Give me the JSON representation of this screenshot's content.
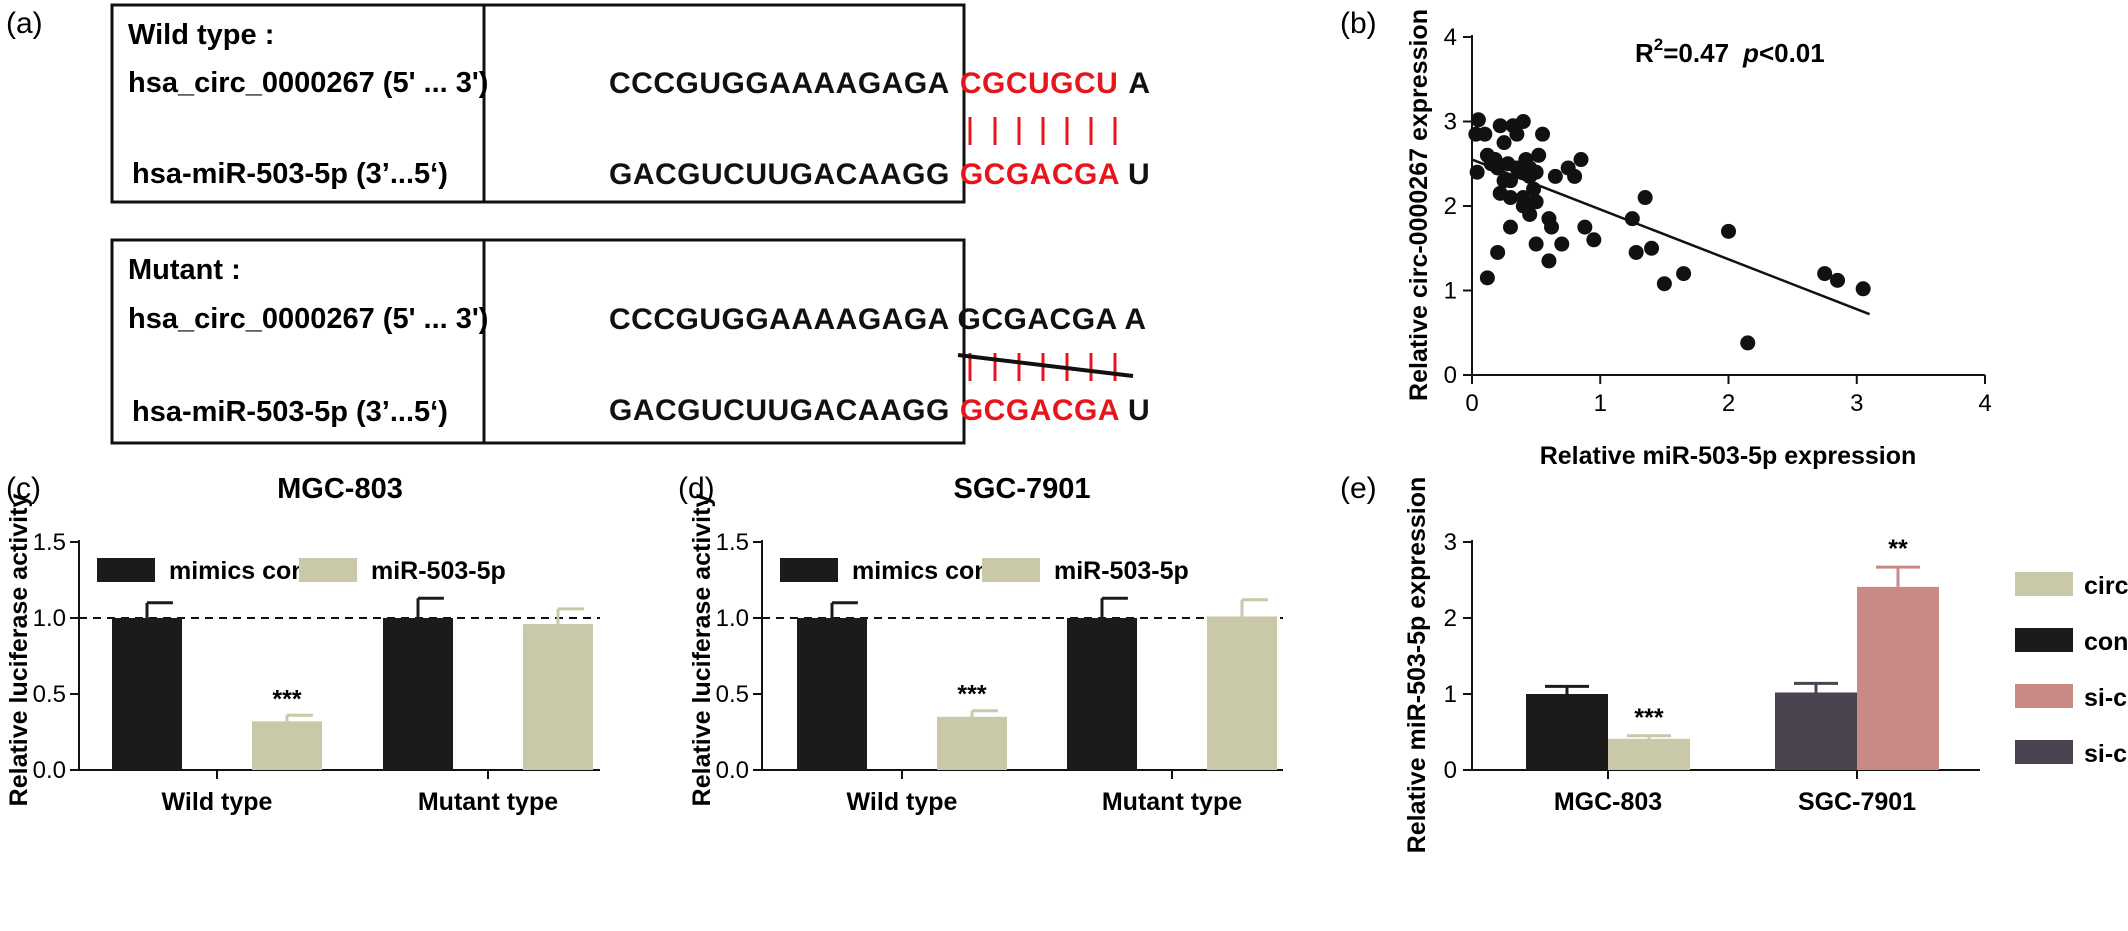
{
  "panel_a": {
    "label": "(a)",
    "wild": {
      "title": "Wild type :",
      "circ_name": "hsa_circ_0000267 (5' ... 3')",
      "mir_name": "hsa-miR-503-5p (3’...5‘)",
      "circ_seq_plain": "CCCGUGGAAAAGAGA",
      "circ_seq_red": "CGCUGCU",
      "circ_seq_end": "A",
      "mir_seq_plain": "GACGUCUUGACAAGG",
      "mir_seq_red": "GCGACGA",
      "mir_seq_end": "U"
    },
    "mutant": {
      "title": "Mutant :",
      "circ_name": "hsa_circ_0000267 (5' ... 3')",
      "mir_name": "hsa-miR-503-5p (3’...5‘)",
      "circ_seq_plain": "CCCGUGGAAAAGAGA GCGACGA A",
      "mir_seq_plain": "GACGUCUUGACAAGG",
      "mir_seq_red": "GCGACGA",
      "mir_seq_end": "U"
    },
    "colors": {
      "red": "#e8141b",
      "black": "#111111"
    }
  },
  "chart_data": [
    {
      "panel": "(b)",
      "type": "scatter",
      "annotation": "R²=0.47  p<0.01",
      "annotation_parts": {
        "r": "R",
        "sup": "2",
        "val": "=0.47",
        "p": "p",
        "pval": "<0.01"
      },
      "xlabel": "Relative miR-503-5p expression",
      "ylabel": "Relative circ-0000267 expression",
      "xlim": [
        0,
        4
      ],
      "ylim": [
        0,
        4
      ],
      "xticks": [
        "0",
        "1",
        "2",
        "3",
        "4"
      ],
      "yticks": [
        "0",
        "1",
        "2",
        "3",
        "4"
      ],
      "points": [
        [
          0.03,
          2.85
        ],
        [
          0.05,
          3.02
        ],
        [
          0.04,
          2.4
        ],
        [
          0.1,
          2.85
        ],
        [
          0.12,
          2.6
        ],
        [
          0.15,
          2.5
        ],
        [
          0.18,
          2.55
        ],
        [
          0.2,
          2.45
        ],
        [
          0.22,
          2.95
        ],
        [
          0.25,
          2.75
        ],
        [
          0.28,
          2.5
        ],
        [
          0.3,
          2.3
        ],
        [
          0.32,
          2.95
        ],
        [
          0.35,
          2.85
        ],
        [
          0.38,
          2.4
        ],
        [
          0.4,
          3.0
        ],
        [
          0.42,
          2.55
        ],
        [
          0.45,
          2.45
        ],
        [
          0.48,
          2.2
        ],
        [
          0.5,
          2.05
        ],
        [
          0.52,
          2.6
        ],
        [
          0.22,
          2.15
        ],
        [
          0.25,
          2.3
        ],
        [
          0.3,
          2.1
        ],
        [
          0.35,
          2.45
        ],
        [
          0.4,
          2.0
        ],
        [
          0.45,
          2.35
        ],
        [
          0.5,
          2.4
        ],
        [
          0.55,
          2.85
        ],
        [
          0.6,
          1.85
        ],
        [
          0.62,
          1.75
        ],
        [
          0.65,
          2.35
        ],
        [
          0.7,
          1.55
        ],
        [
          0.75,
          2.45
        ],
        [
          0.8,
          2.35
        ],
        [
          0.85,
          2.55
        ],
        [
          0.88,
          1.75
        ],
        [
          0.95,
          1.6
        ],
        [
          0.3,
          1.75
        ],
        [
          0.2,
          1.45
        ],
        [
          0.12,
          1.15
        ],
        [
          0.5,
          1.55
        ],
        [
          0.6,
          1.35
        ],
        [
          0.4,
          2.1
        ],
        [
          0.45,
          1.9
        ],
        [
          1.25,
          1.85
        ],
        [
          1.35,
          2.1
        ],
        [
          1.28,
          1.45
        ],
        [
          1.4,
          1.5
        ],
        [
          1.5,
          1.08
        ],
        [
          1.65,
          1.2
        ],
        [
          2.0,
          1.7
        ],
        [
          2.15,
          0.38
        ],
        [
          2.75,
          1.2
        ],
        [
          2.85,
          1.12
        ],
        [
          3.05,
          1.02
        ]
      ],
      "fit_line": {
        "x": [
          0,
          3.1
        ],
        "y": [
          2.55,
          0.72
        ]
      }
    },
    {
      "panel": "(c)",
      "type": "bar",
      "title": "MGC-803",
      "ylabel": "Relative luciferase activity",
      "categories": [
        "Wild type",
        "Mutant type"
      ],
      "ylim": [
        0,
        1.5
      ],
      "yticks": [
        "0.0",
        "0.5",
        "1.0",
        "1.5"
      ],
      "reference_line": 1.0,
      "series": [
        {
          "name": "mimics control",
          "color": "#1b1b1b",
          "values": [
            1.0,
            1.0
          ],
          "errors": [
            0.1,
            0.13
          ]
        },
        {
          "name": "miR-503-5p",
          "color": "#c9c8a8",
          "values": [
            0.32,
            0.96
          ],
          "errors": [
            0.04,
            0.1
          ]
        }
      ],
      "significance": [
        {
          "category": 0,
          "series": 1,
          "text": "***"
        }
      ]
    },
    {
      "panel": "(d)",
      "type": "bar",
      "title": "SGC-7901",
      "ylabel": "Relative luciferase activity",
      "categories": [
        "Wild type",
        "Mutant type"
      ],
      "ylim": [
        0,
        1.5
      ],
      "yticks": [
        "0.0",
        "0.5",
        "1.0",
        "1.5"
      ],
      "reference_line": 1.0,
      "series": [
        {
          "name": "mimics control",
          "color": "#1b1b1b",
          "values": [
            1.0,
            1.0
          ],
          "errors": [
            0.1,
            0.13
          ]
        },
        {
          "name": "miR-503-5p",
          "color": "#c9c8a8",
          "values": [
            0.35,
            1.01
          ],
          "errors": [
            0.04,
            0.11
          ]
        }
      ],
      "significance": [
        {
          "category": 0,
          "series": 1,
          "text": "***"
        }
      ]
    },
    {
      "panel": "(e)",
      "type": "bar",
      "ylabel": "Relative miR-503-5p expression",
      "categories": [
        "MGC-803",
        "SGC-7901"
      ],
      "ylim": [
        0,
        3
      ],
      "yticks": [
        "0",
        "1",
        "2",
        "3"
      ],
      "bars": [
        {
          "category": 0,
          "series": "con",
          "value": 1.0,
          "error": 0.1
        },
        {
          "category": 0,
          "series": "circ",
          "value": 0.41,
          "error": 0.04
        },
        {
          "category": 1,
          "series": "si-con",
          "value": 1.02,
          "error": 0.12
        },
        {
          "category": 1,
          "series": "si-circ",
          "value": 2.41,
          "error": 0.26
        }
      ],
      "legend": [
        {
          "name": "circ",
          "color": "#c9c8a8"
        },
        {
          "name": "con",
          "color": "#1b1b1b"
        },
        {
          "name": "si-circ",
          "color": "#c98a85"
        },
        {
          "name": "si-con",
          "color": "#4b4450"
        }
      ],
      "significance": [
        {
          "bar": 1,
          "text": "***"
        },
        {
          "bar": 3,
          "text": "**"
        }
      ]
    }
  ]
}
